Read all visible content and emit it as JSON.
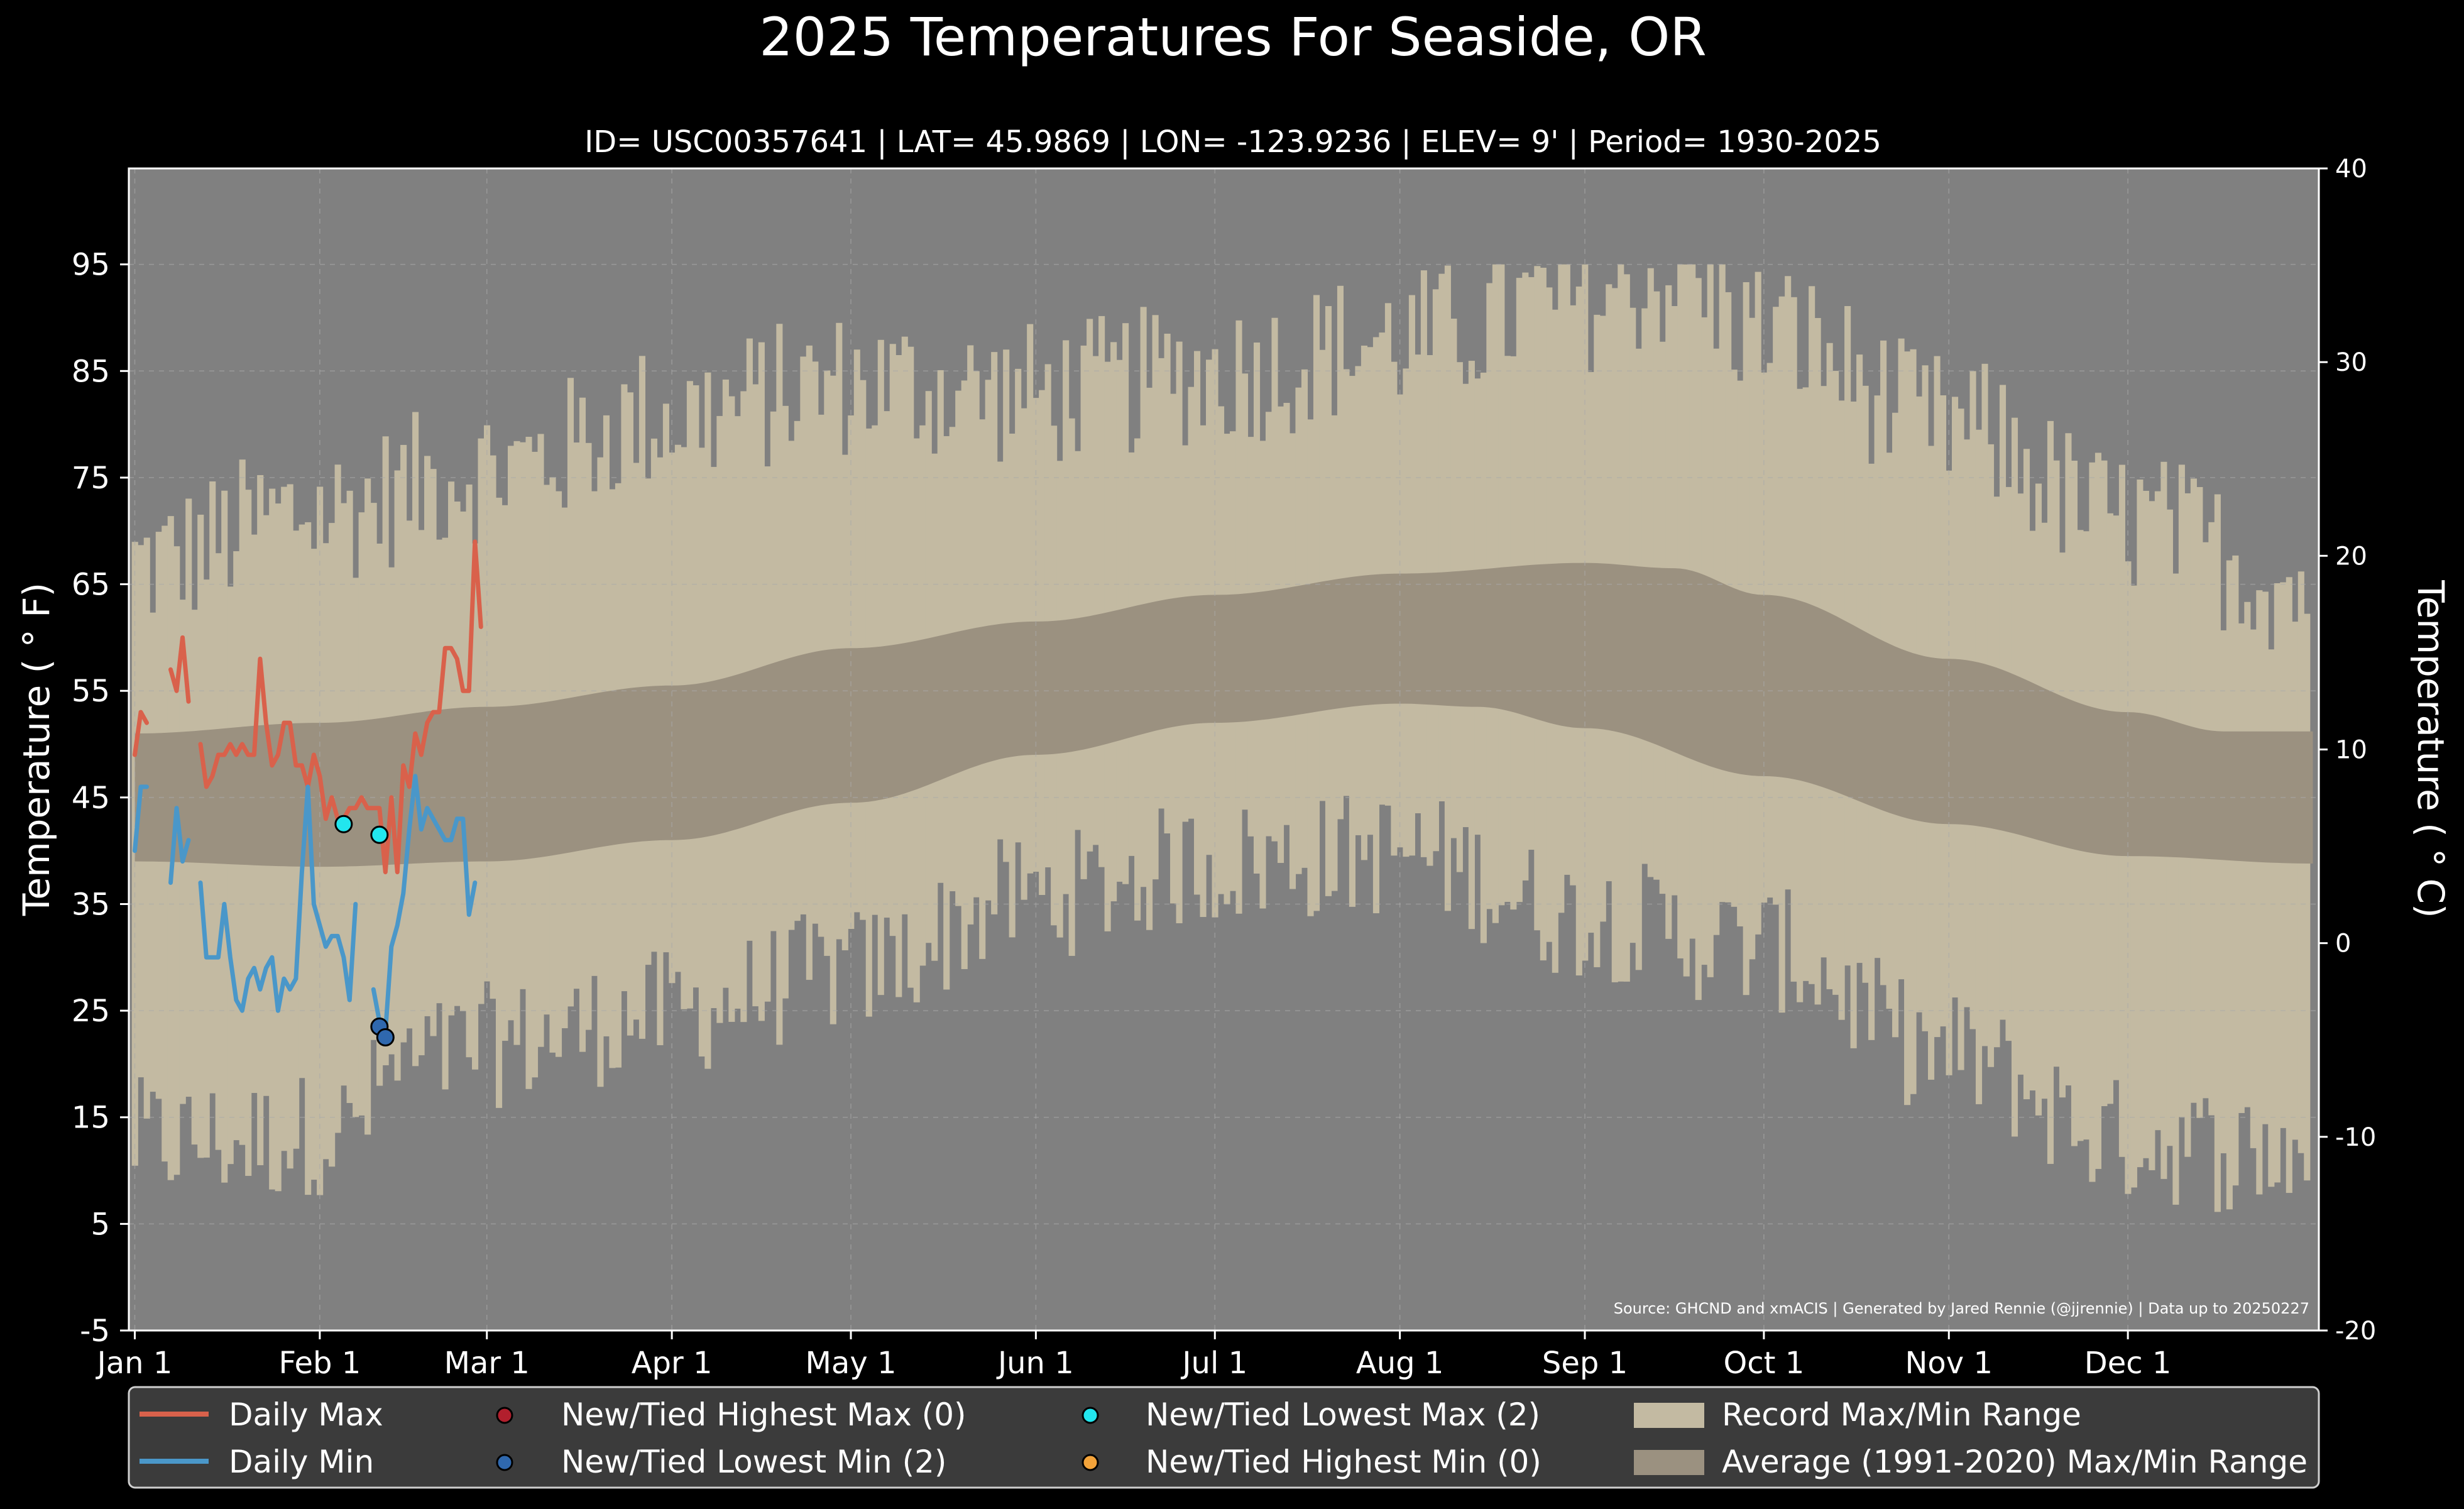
{
  "title": "2025 Temperatures For Seaside, OR",
  "subtitle": "ID= USC00357641 | LAT= 45.9869 | LON= -123.9236 | ELEV= 9' | Period= 1930-2025",
  "source_note": "Source: GHCND and xmACIS | Generated by Jared Rennie (@jjrennie) | Data up to 20250227",
  "colors": {
    "background": "#000000",
    "plot_background": "#808080",
    "record_range": "#c3baa2",
    "average_range": "#9b9180",
    "daily_max": "#d9614b",
    "daily_min": "#4a97c9",
    "new_high_max": "#b21f2d",
    "new_low_min": "#2f68ae",
    "new_low_max": "#22e6ee",
    "new_high_min": "#f3a33a",
    "legend_bg": "#3b3b3b",
    "grid": "#aaaaaa"
  },
  "chart_data": {
    "type": "line",
    "xlabel": "",
    "ylabel": "Temperature ( ° F)",
    "ylabel_right": "Temperature ( ° C)",
    "ylim": [
      -5,
      104
    ],
    "ylim_right": [
      -20,
      40
    ],
    "xlim_day": [
      -1,
      366
    ],
    "yticks": [
      -5,
      5,
      15,
      25,
      35,
      45,
      55,
      65,
      75,
      85,
      95
    ],
    "yticks_right": [
      -20,
      -10,
      0,
      10,
      20,
      30,
      40
    ],
    "x_tick_labels": [
      "Jan 1",
      "Feb 1",
      "Mar 1",
      "Apr 1",
      "May 1",
      "Jun 1",
      "Jul 1",
      "Aug 1",
      "Sep 1",
      "Oct 1",
      "Nov 1",
      "Dec 1"
    ],
    "x_tick_days": [
      0,
      31,
      59,
      90,
      120,
      151,
      181,
      212,
      243,
      273,
      304,
      334
    ],
    "grid": true,
    "legend_position": "bottom",
    "legend": {
      "daily_max": "Daily Max",
      "daily_min": "Daily Min",
      "new_high_max": "New/Tied Highest Max (0)",
      "new_low_min": "New/Tied Lowest Min (2)",
      "new_low_max": "New/Tied Lowest Max (2)",
      "new_high_min": "New/Tied Highest Min (0)",
      "record_range": "Record Max/Min Range",
      "average_range": "Average (1991-2020) Max/Min Range"
    },
    "daily_max": [
      [
        0,
        49
      ],
      [
        1,
        53
      ],
      [
        2,
        52
      ],
      [
        6,
        57
      ],
      [
        7,
        55
      ],
      [
        8,
        60
      ],
      [
        9,
        54
      ],
      [
        11,
        50
      ],
      [
        12,
        46
      ],
      [
        13,
        47
      ],
      [
        14,
        49
      ],
      [
        15,
        49
      ],
      [
        16,
        50
      ],
      [
        17,
        49
      ],
      [
        18,
        50
      ],
      [
        19,
        49
      ],
      [
        20,
        49
      ],
      [
        21,
        58
      ],
      [
        22,
        52
      ],
      [
        23,
        48
      ],
      [
        24,
        49
      ],
      [
        25,
        52
      ],
      [
        26,
        52
      ],
      [
        27,
        48
      ],
      [
        28,
        48
      ],
      [
        29,
        46
      ],
      [
        30,
        49
      ],
      [
        31,
        47
      ],
      [
        32,
        43
      ],
      [
        33,
        45
      ],
      [
        34,
        43
      ],
      [
        35,
        43
      ],
      [
        36,
        44
      ],
      [
        37,
        44
      ],
      [
        38,
        45
      ],
      [
        39,
        44
      ],
      [
        40,
        44
      ],
      [
        41,
        44
      ],
      [
        42,
        38
      ],
      [
        43,
        45
      ],
      [
        44,
        38
      ],
      [
        45,
        48
      ],
      [
        46,
        46
      ],
      [
        47,
        51
      ],
      [
        48,
        49
      ],
      [
        49,
        52
      ],
      [
        50,
        53
      ],
      [
        51,
        53
      ],
      [
        52,
        59
      ],
      [
        53,
        59
      ],
      [
        54,
        58
      ],
      [
        55,
        55
      ],
      [
        56,
        55
      ],
      [
        57,
        69
      ],
      [
        58,
        61
      ]
    ],
    "daily_min": [
      [
        0,
        40
      ],
      [
        1,
        46
      ],
      [
        2,
        46
      ],
      [
        6,
        37
      ],
      [
        7,
        44
      ],
      [
        8,
        39
      ],
      [
        9,
        41
      ],
      [
        11,
        37
      ],
      [
        12,
        30
      ],
      [
        13,
        30
      ],
      [
        14,
        30
      ],
      [
        15,
        35
      ],
      [
        16,
        30
      ],
      [
        17,
        26
      ],
      [
        18,
        25
      ],
      [
        19,
        28
      ],
      [
        20,
        29
      ],
      [
        21,
        27
      ],
      [
        22,
        29
      ],
      [
        23,
        30
      ],
      [
        24,
        25
      ],
      [
        25,
        28
      ],
      [
        26,
        27
      ],
      [
        27,
        28
      ],
      [
        28,
        38
      ],
      [
        29,
        46
      ],
      [
        30,
        35
      ],
      [
        31,
        33
      ],
      [
        32,
        31
      ],
      [
        33,
        32
      ],
      [
        34,
        32
      ],
      [
        35,
        30
      ],
      [
        36,
        26
      ],
      [
        37,
        35
      ],
      [
        40,
        27
      ],
      [
        41,
        24
      ],
      [
        42,
        23
      ],
      [
        43,
        31
      ],
      [
        44,
        33
      ],
      [
        45,
        36
      ],
      [
        46,
        42
      ],
      [
        47,
        47
      ],
      [
        48,
        42
      ],
      [
        49,
        44
      ],
      [
        50,
        43
      ],
      [
        51,
        42
      ],
      [
        52,
        41
      ],
      [
        53,
        41
      ],
      [
        54,
        43
      ],
      [
        55,
        43
      ],
      [
        56,
        34
      ],
      [
        57,
        37
      ]
    ],
    "new_high_max": [],
    "new_low_min": [
      [
        41,
        23.5
      ],
      [
        42,
        22.5
      ]
    ],
    "new_low_max": [
      [
        35,
        42.5
      ],
      [
        41,
        41.5
      ]
    ],
    "new_high_min": [],
    "record_max_anchors": [
      [
        0,
        64
      ],
      [
        30,
        69
      ],
      [
        60,
        73
      ],
      [
        90,
        78
      ],
      [
        120,
        81
      ],
      [
        151,
        80
      ],
      [
        181,
        82
      ],
      [
        212,
        85
      ],
      [
        243,
        89
      ],
      [
        258,
        91
      ],
      [
        273,
        86
      ],
      [
        304,
        77
      ],
      [
        334,
        68
      ],
      [
        365,
        62
      ]
    ],
    "record_min_anchors": [
      [
        0,
        14
      ],
      [
        20,
        14
      ],
      [
        35,
        15
      ],
      [
        45,
        21
      ],
      [
        60,
        23
      ],
      [
        90,
        26
      ],
      [
        120,
        30
      ],
      [
        151,
        37
      ],
      [
        181,
        40
      ],
      [
        212,
        41
      ],
      [
        243,
        35
      ],
      [
        273,
        32
      ],
      [
        304,
        22
      ],
      [
        334,
        14
      ],
      [
        355,
        13
      ],
      [
        365,
        13
      ]
    ],
    "avg_max_anchors": [
      [
        0,
        51
      ],
      [
        31,
        52
      ],
      [
        59,
        53.5
      ],
      [
        90,
        55.5
      ],
      [
        120,
        59
      ],
      [
        151,
        61.5
      ],
      [
        181,
        64
      ],
      [
        212,
        66
      ],
      [
        243,
        67
      ],
      [
        258,
        66.5
      ],
      [
        273,
        64
      ],
      [
        304,
        58
      ],
      [
        334,
        53
      ],
      [
        350,
        51.2
      ],
      [
        365,
        51.2
      ]
    ],
    "avg_min_anchors": [
      [
        0,
        39
      ],
      [
        31,
        38.5
      ],
      [
        59,
        39
      ],
      [
        90,
        41
      ],
      [
        120,
        44.5
      ],
      [
        151,
        49
      ],
      [
        181,
        52
      ],
      [
        212,
        53.8
      ],
      [
        225,
        53.5
      ],
      [
        243,
        51.5
      ],
      [
        273,
        47
      ],
      [
        304,
        42.5
      ],
      [
        334,
        39.5
      ],
      [
        365,
        38.8
      ]
    ]
  }
}
